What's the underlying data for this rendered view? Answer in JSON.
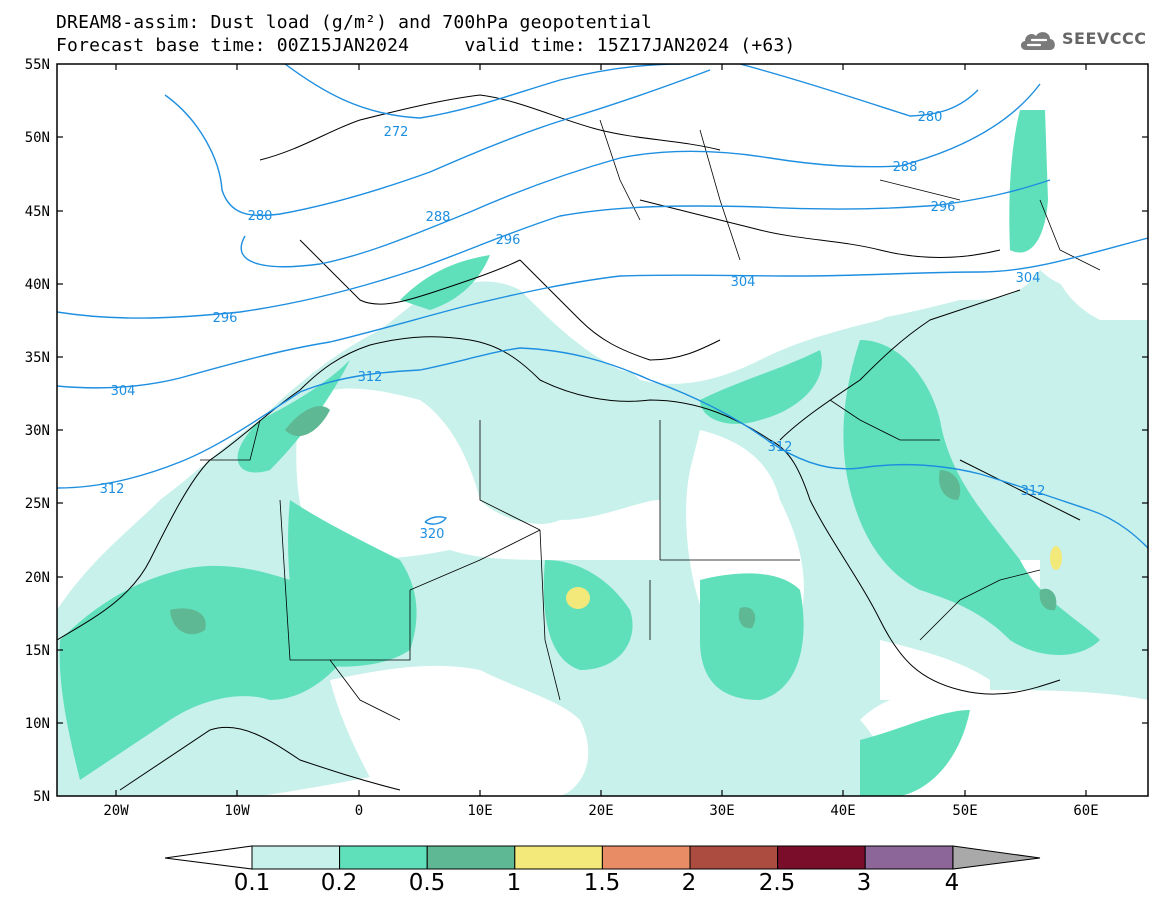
{
  "title": {
    "line1": "DREAM8-assim: Dust load (g/m²) and 700hPa geopotential",
    "line2": "Forecast base time: 00Z15JAN2024     valid time: 15Z17JAN2024 (+63)"
  },
  "logo": {
    "icon": "cloud-icon",
    "text": "SEEVCCC"
  },
  "map": {
    "lat_range": [
      5,
      55
    ],
    "lon_range": [
      -25,
      65
    ],
    "lat_ticks": [
      "55N",
      "50N",
      "45N",
      "40N",
      "35N",
      "30N",
      "25N",
      "20N",
      "15N",
      "10N",
      "5N"
    ],
    "lon_ticks": [
      "20W",
      "10W",
      "0",
      "10E",
      "20E",
      "30E",
      "40E",
      "50E",
      "60E"
    ],
    "contour_color": "#1e8fe0",
    "contour_labels": [
      "272",
      "280",
      "280",
      "288",
      "288",
      "296",
      "296",
      "296",
      "304",
      "304",
      "304",
      "312",
      "312",
      "312",
      "312",
      "320"
    ]
  },
  "legend": {
    "labels": [
      "0.1",
      "0.2",
      "0.5",
      "1",
      "1.5",
      "2",
      "2.5",
      "3",
      "4"
    ],
    "colors": [
      "#c7f1ea",
      "#5fe0ba",
      "#5fb894",
      "#f2e97a",
      "#e88c66",
      "#ac4b3f",
      "#7a0e2a",
      "#8d6699",
      "#a9a9a9"
    ],
    "below_color": "#ffffff"
  }
}
